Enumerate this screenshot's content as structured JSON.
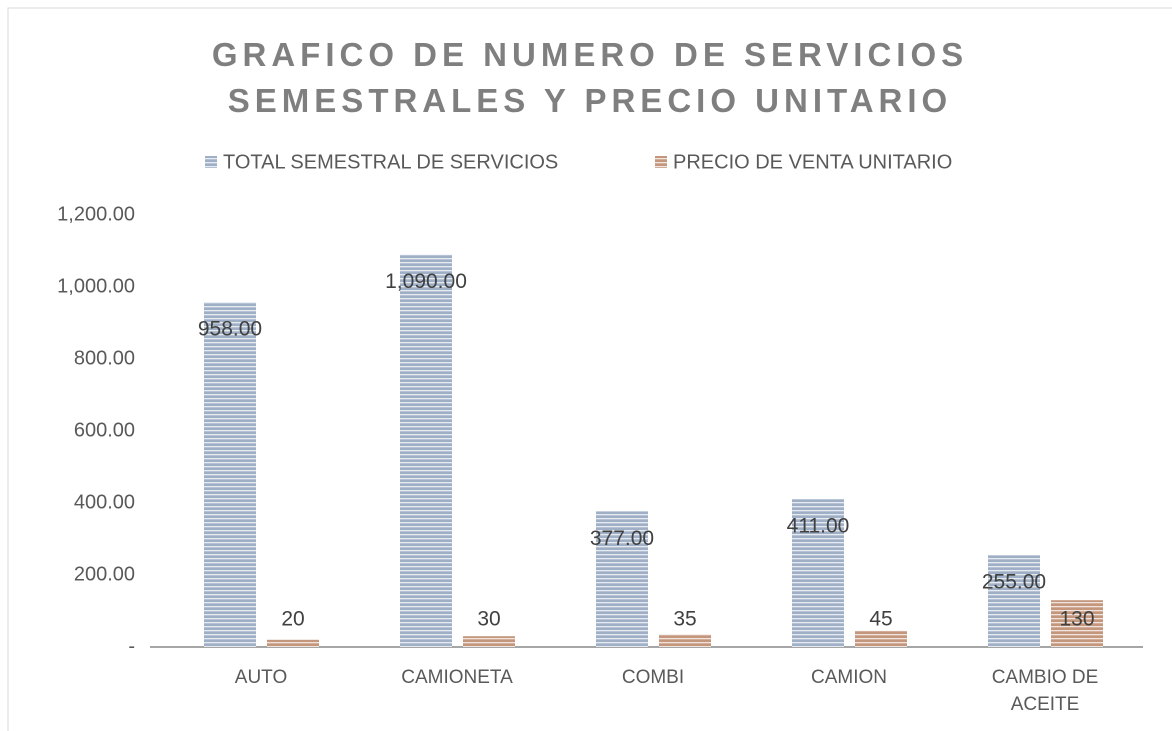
{
  "chart_data": {
    "type": "bar",
    "title": "GRAFICO DE NUMERO DE SERVICIOS SEMESTRALES Y PRECIO UNITARIO",
    "categories": [
      "AUTO",
      "CAMIONETA",
      "COMBI",
      "CAMION",
      "CAMBIO DE ACEITE"
    ],
    "series": [
      {
        "name": "TOTAL SEMESTRAL DE SERVICIOS",
        "color": "#9fb0c6",
        "values": [
          958,
          1090,
          377,
          411,
          255
        ],
        "value_labels": [
          "958.00",
          "1,090.00",
          "377.00",
          "411.00",
          "255.00"
        ]
      },
      {
        "name": "PRECIO DE VENTA UNITARIO",
        "color": "#c4977d",
        "values": [
          20,
          30,
          35,
          45,
          130
        ]
      }
    ],
    "ylim": [
      0,
      1200
    ],
    "yticks": [
      {
        "value": 0,
        "label": "-"
      },
      {
        "value": 200,
        "label": "200.00"
      },
      {
        "value": 400,
        "label": "400.00"
      },
      {
        "value": 600,
        "label": "600.00"
      },
      {
        "value": 800,
        "label": "800.00"
      },
      {
        "value": 1000,
        "label": "1,000.00"
      },
      {
        "value": 1200,
        "label": "1,200.00"
      }
    ],
    "legend": "top",
    "grid": false
  }
}
